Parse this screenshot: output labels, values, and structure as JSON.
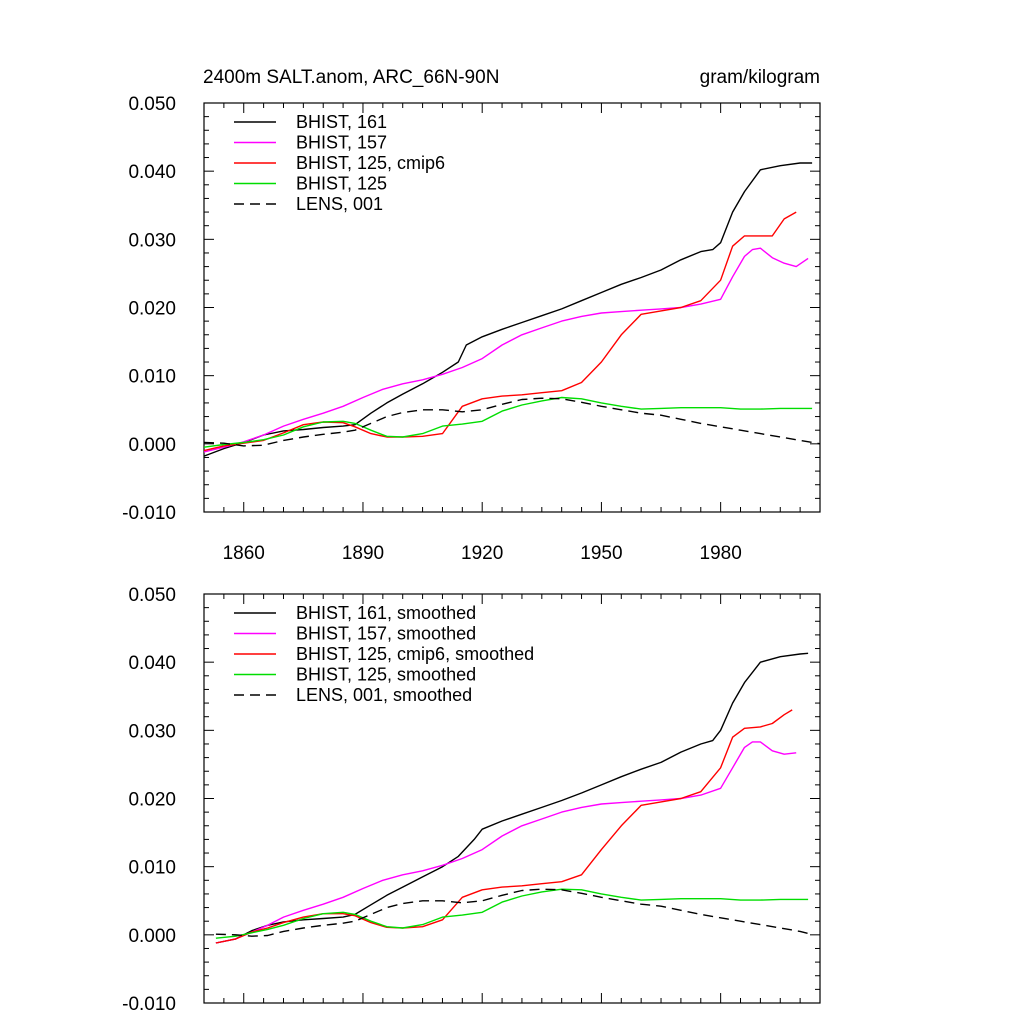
{
  "header": {
    "title": "2400m SALT.anom, ARC_66N-90N",
    "units": "gram/kilogram"
  },
  "chart_data": [
    {
      "type": "line",
      "title": "2400m SALT.anom, ARC_66N-90N",
      "ylabel": "",
      "xlabel": "",
      "xlim": [
        1850,
        2005
      ],
      "ylim": [
        -0.01,
        0.05
      ],
      "yticks": [
        "0.050",
        "0.040",
        "0.030",
        "0.020",
        "0.010",
        "0.000",
        "-0.010"
      ],
      "xticks": [
        "1860",
        "1890",
        "1920",
        "1950",
        "1980"
      ],
      "legend_position": "top-left",
      "series": [
        {
          "name": "BHIST, 161",
          "color": "#000000",
          "dash": "solid",
          "x": [
            1850,
            1855,
            1860,
            1865,
            1870,
            1875,
            1880,
            1885,
            1888,
            1892,
            1896,
            1900,
            1905,
            1910,
            1914,
            1916,
            1920,
            1925,
            1930,
            1935,
            1940,
            1945,
            1950,
            1955,
            1960,
            1965,
            1970,
            1975,
            1978,
            1980,
            1983,
            1986,
            1990,
            1995,
            2000,
            2003
          ],
          "y": [
            -0.0018,
            -0.0007,
            0.0002,
            0.0013,
            0.0019,
            0.0021,
            0.0024,
            0.0026,
            0.0028,
            0.0045,
            0.006,
            0.0073,
            0.0088,
            0.0105,
            0.012,
            0.0145,
            0.0157,
            0.0168,
            0.0178,
            0.0188,
            0.0198,
            0.021,
            0.0222,
            0.0234,
            0.0244,
            0.0255,
            0.027,
            0.0282,
            0.0285,
            0.0295,
            0.034,
            0.037,
            0.0402,
            0.0408,
            0.0412,
            0.0412
          ]
        },
        {
          "name": "BHIST, 157",
          "color": "#ff00ff",
          "dash": "solid",
          "x": [
            1850,
            1855,
            1860,
            1865,
            1870,
            1875,
            1880,
            1885,
            1890,
            1895,
            1900,
            1905,
            1910,
            1915,
            1920,
            1925,
            1930,
            1935,
            1940,
            1945,
            1950,
            1955,
            1960,
            1965,
            1970,
            1975,
            1980,
            1983,
            1986,
            1988,
            1990,
            1993,
            1996,
            1999,
            2002
          ],
          "y": [
            -0.0012,
            -0.0005,
            0.0003,
            0.0013,
            0.0026,
            0.0036,
            0.0045,
            0.0055,
            0.0068,
            0.008,
            0.0088,
            0.0094,
            0.0102,
            0.0112,
            0.0125,
            0.0145,
            0.016,
            0.017,
            0.018,
            0.0187,
            0.0192,
            0.0194,
            0.0196,
            0.0198,
            0.02,
            0.0205,
            0.0212,
            0.0245,
            0.0275,
            0.0285,
            0.0287,
            0.0273,
            0.0265,
            0.026,
            0.0272
          ]
        },
        {
          "name": "BHIST, 125, cmip6",
          "color": "#ff0000",
          "dash": "solid",
          "x": [
            1850,
            1855,
            1860,
            1865,
            1870,
            1875,
            1880,
            1885,
            1888,
            1892,
            1896,
            1900,
            1905,
            1910,
            1915,
            1920,
            1925,
            1930,
            1935,
            1940,
            1945,
            1950,
            1955,
            1960,
            1965,
            1970,
            1975,
            1980,
            1983,
            1986,
            1990,
            1993,
            1996,
            1999
          ],
          "y": [
            -0.001,
            -0.0003,
            0.0001,
            0.0005,
            0.0016,
            0.0028,
            0.0032,
            0.0031,
            0.0025,
            0.0015,
            0.001,
            0.001,
            0.0011,
            0.0015,
            0.0055,
            0.0066,
            0.007,
            0.0072,
            0.0075,
            0.0078,
            0.009,
            0.012,
            0.016,
            0.019,
            0.0195,
            0.02,
            0.021,
            0.024,
            0.029,
            0.0305,
            0.0305,
            0.0305,
            0.033,
            0.034
          ]
        },
        {
          "name": "BHIST, 125",
          "color": "#00dd00",
          "dash": "solid",
          "x": [
            1850,
            1855,
            1860,
            1865,
            1870,
            1875,
            1880,
            1885,
            1888,
            1892,
            1896,
            1900,
            1905,
            1910,
            1915,
            1920,
            1925,
            1930,
            1935,
            1940,
            1945,
            1950,
            1955,
            1960,
            1965,
            1970,
            1975,
            1980,
            1985,
            1990,
            1995,
            2000,
            2003
          ],
          "y": [
            -0.0005,
            -0.0001,
            0.0002,
            0.0006,
            0.0013,
            0.0025,
            0.0032,
            0.0033,
            0.003,
            0.002,
            0.0011,
            0.001,
            0.0015,
            0.0026,
            0.0029,
            0.0033,
            0.0048,
            0.0057,
            0.0063,
            0.0068,
            0.0066,
            0.006,
            0.0055,
            0.0051,
            0.0052,
            0.0053,
            0.0053,
            0.0053,
            0.0051,
            0.0051,
            0.0052,
            0.0052,
            0.0052
          ]
        },
        {
          "name": "LENS, 001",
          "color": "#000000",
          "dash": "dashed",
          "x": [
            1850,
            1855,
            1860,
            1865,
            1870,
            1875,
            1880,
            1885,
            1888,
            1892,
            1896,
            1900,
            1905,
            1910,
            1915,
            1920,
            1925,
            1930,
            1935,
            1940,
            1945,
            1950,
            1955,
            1960,
            1965,
            1970,
            1975,
            1980,
            1985,
            1990,
            1995,
            2000,
            2005
          ],
          "y": [
            0.0002,
            0.0001,
            -0.0003,
            -0.0002,
            0.0005,
            0.001,
            0.0014,
            0.0017,
            0.002,
            0.003,
            0.004,
            0.0046,
            0.005,
            0.005,
            0.0047,
            0.005,
            0.0058,
            0.0065,
            0.0067,
            0.0066,
            0.0061,
            0.0055,
            0.005,
            0.0045,
            0.0042,
            0.0036,
            0.003,
            0.0025,
            0.002,
            0.0015,
            0.001,
            0.0005,
            0.0
          ]
        }
      ]
    },
    {
      "type": "line",
      "title": "",
      "ylabel": "",
      "xlabel": "",
      "xlim": [
        1850,
        2005
      ],
      "ylim": [
        -0.01,
        0.05
      ],
      "yticks": [
        "0.050",
        "0.040",
        "0.030",
        "0.020",
        "0.010",
        "0.000",
        "-0.010"
      ],
      "legend_position": "top-left",
      "series": [
        {
          "name": "BHIST, 161, smoothed",
          "color": "#000000",
          "dash": "solid",
          "x": [
            1853,
            1858,
            1862,
            1866,
            1870,
            1875,
            1880,
            1885,
            1888,
            1892,
            1896,
            1900,
            1905,
            1910,
            1914,
            1918,
            1920,
            1925,
            1930,
            1935,
            1940,
            1945,
            1950,
            1955,
            1960,
            1965,
            1970,
            1975,
            1978,
            1980,
            1983,
            1986,
            1990,
            1995,
            2000,
            2002
          ],
          "y": [
            -0.0012,
            -0.0006,
            0.0006,
            0.0014,
            0.0019,
            0.0022,
            0.0024,
            0.0026,
            0.003,
            0.0044,
            0.0058,
            0.007,
            0.0085,
            0.01,
            0.0115,
            0.014,
            0.0155,
            0.0167,
            0.0177,
            0.0187,
            0.0197,
            0.0208,
            0.022,
            0.0232,
            0.0243,
            0.0253,
            0.0268,
            0.028,
            0.0285,
            0.03,
            0.034,
            0.037,
            0.04,
            0.0408,
            0.0412,
            0.0413
          ]
        },
        {
          "name": "BHIST, 157, smoothed",
          "color": "#ff00ff",
          "dash": "solid",
          "x": [
            1853,
            1858,
            1862,
            1866,
            1870,
            1875,
            1880,
            1885,
            1890,
            1895,
            1900,
            1905,
            1910,
            1915,
            1920,
            1925,
            1930,
            1935,
            1940,
            1945,
            1950,
            1955,
            1960,
            1965,
            1970,
            1975,
            1980,
            1983,
            1986,
            1988,
            1990,
            1993,
            1996,
            1999
          ],
          "y": [
            -0.0012,
            -0.0006,
            0.0004,
            0.0014,
            0.0026,
            0.0036,
            0.0045,
            0.0055,
            0.0068,
            0.008,
            0.0088,
            0.0094,
            0.0102,
            0.0112,
            0.0125,
            0.0145,
            0.016,
            0.017,
            0.018,
            0.0187,
            0.0192,
            0.0194,
            0.0196,
            0.0198,
            0.02,
            0.0205,
            0.0215,
            0.0245,
            0.0275,
            0.0283,
            0.0283,
            0.027,
            0.0265,
            0.0267
          ]
        },
        {
          "name": "BHIST, 125, cmip6, smoothed",
          "color": "#ff0000",
          "dash": "solid",
          "x": [
            1853,
            1858,
            1862,
            1866,
            1870,
            1875,
            1880,
            1885,
            1888,
            1892,
            1896,
            1900,
            1905,
            1910,
            1915,
            1920,
            1925,
            1930,
            1935,
            1940,
            1945,
            1950,
            1955,
            1960,
            1965,
            1970,
            1975,
            1980,
            1983,
            1986,
            1990,
            1993,
            1996,
            1998
          ],
          "y": [
            -0.0012,
            -0.0006,
            0.0004,
            0.001,
            0.0018,
            0.0026,
            0.0031,
            0.0031,
            0.0028,
            0.0018,
            0.0011,
            0.001,
            0.0012,
            0.0022,
            0.0055,
            0.0066,
            0.007,
            0.0072,
            0.0075,
            0.0078,
            0.0088,
            0.0125,
            0.016,
            0.019,
            0.0195,
            0.02,
            0.021,
            0.0245,
            0.029,
            0.0303,
            0.0305,
            0.031,
            0.0323,
            0.033
          ]
        },
        {
          "name": "BHIST, 125, smoothed",
          "color": "#00dd00",
          "dash": "solid",
          "x": [
            1853,
            1858,
            1862,
            1866,
            1870,
            1875,
            1880,
            1885,
            1888,
            1892,
            1896,
            1900,
            1905,
            1910,
            1915,
            1920,
            1925,
            1930,
            1935,
            1940,
            1945,
            1950,
            1955,
            1960,
            1965,
            1970,
            1975,
            1980,
            1985,
            1990,
            1995,
            2000,
            2002
          ],
          "y": [
            -0.0005,
            -0.0002,
            0.0003,
            0.0008,
            0.0014,
            0.0024,
            0.0031,
            0.0033,
            0.003,
            0.002,
            0.0012,
            0.001,
            0.0015,
            0.0026,
            0.0029,
            0.0033,
            0.0048,
            0.0057,
            0.0063,
            0.0067,
            0.0066,
            0.006,
            0.0055,
            0.0051,
            0.0052,
            0.0053,
            0.0053,
            0.0053,
            0.0051,
            0.0051,
            0.0052,
            0.0052,
            0.0052
          ]
        },
        {
          "name": "LENS, 001, smoothed",
          "color": "#000000",
          "dash": "dashed",
          "x": [
            1853,
            1858,
            1862,
            1866,
            1870,
            1875,
            1880,
            1885,
            1888,
            1892,
            1896,
            1900,
            1905,
            1910,
            1915,
            1920,
            1925,
            1930,
            1935,
            1940,
            1945,
            1950,
            1955,
            1960,
            1965,
            1970,
            1975,
            1980,
            1985,
            1990,
            1995,
            2000,
            2002
          ],
          "y": [
            0.0001,
            0.0,
            -0.0002,
            -0.0001,
            0.0005,
            0.001,
            0.0014,
            0.0017,
            0.002,
            0.003,
            0.004,
            0.0046,
            0.005,
            0.005,
            0.0047,
            0.005,
            0.0058,
            0.0065,
            0.0067,
            0.0066,
            0.0061,
            0.0055,
            0.005,
            0.0045,
            0.0042,
            0.0036,
            0.003,
            0.0025,
            0.002,
            0.0015,
            0.001,
            0.0005,
            0.0002
          ]
        }
      ]
    }
  ]
}
